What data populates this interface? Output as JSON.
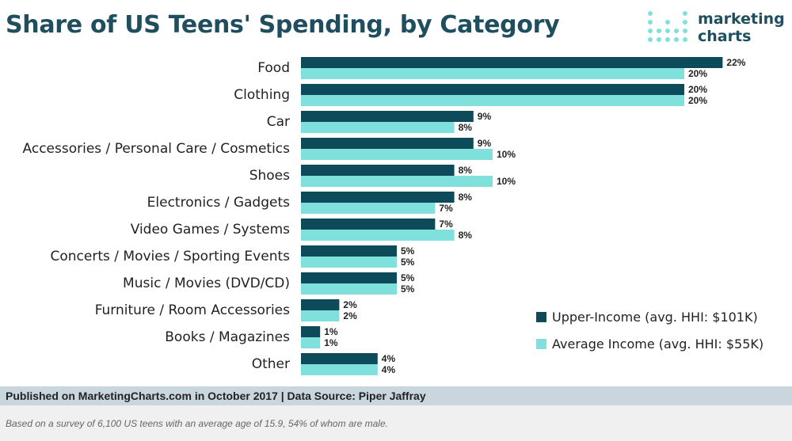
{
  "title": "Share of US Teens' Spending, by Category",
  "logo": {
    "line1": "marketing",
    "line2": "charts"
  },
  "colors": {
    "upper": "#0d4a5a",
    "average": "#7fe0dc",
    "title": "#1f4e5f"
  },
  "chart_data": {
    "type": "bar",
    "orientation": "horizontal",
    "title": "Share of US Teens' Spending, by Category",
    "categories": [
      "Food",
      "Clothing",
      "Car",
      "Accessories / Personal Care / Cosmetics",
      "Shoes",
      "Electronics / Gadgets",
      "Video Games / Systems",
      "Concerts / Movies / Sporting Events",
      "Music / Movies (DVD/CD)",
      "Furniture / Room Accessories",
      "Books / Magazines",
      "Other"
    ],
    "series": [
      {
        "name": "Upper-Income (avg. HHI: $101K)",
        "values": [
          22,
          20,
          9,
          9,
          8,
          8,
          7,
          5,
          5,
          2,
          1,
          4
        ]
      },
      {
        "name": "Average Income (avg. HHI: $55K)",
        "values": [
          20,
          20,
          8,
          10,
          10,
          7,
          8,
          5,
          5,
          2,
          1,
          4
        ]
      }
    ],
    "value_suffix": "%",
    "xlim": [
      0,
      22
    ],
    "grid": false,
    "legend_position": "bottom-right"
  },
  "footer": "Published on MarketingCharts.com in October 2017 | Data Source: Piper Jaffray",
  "note": "Based on a survey of 6,100 US teens with an average age of 15.9, 54% of whom are male."
}
